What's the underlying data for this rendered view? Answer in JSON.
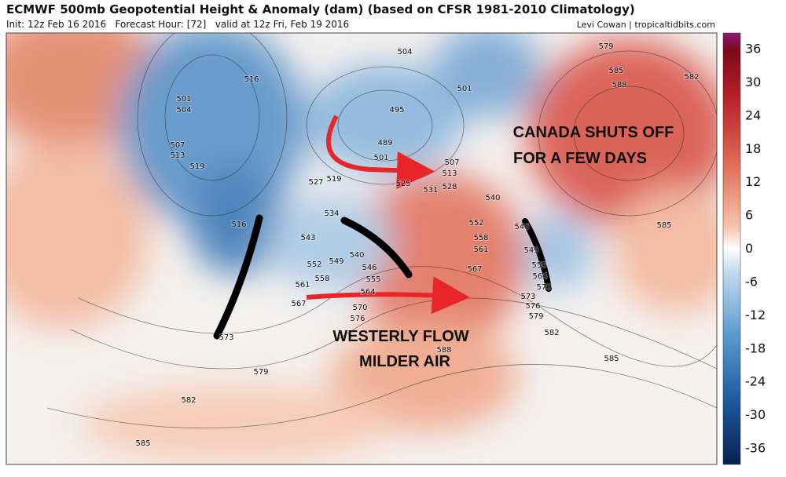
{
  "header": {
    "title": "ECMWF 500mb Geopotential Height & Anomaly (dam) (based on CFSR 1981-2010 Climatology)",
    "subtitle": "Init: 12z Feb 16 2016   Forecast Hour: [72]   valid at 12z Fri, Feb 19 2016",
    "credit": "Levi Cowan | tropicaltidbits.com"
  },
  "annotations": [
    "CANADA SHUTS OFF",
    "FOR A FEW DAYS",
    "WESTERLY FLOW",
    "MILDER AIR"
  ],
  "colorbar": {
    "ticks": [
      36,
      30,
      24,
      18,
      12,
      6,
      0,
      -6,
      -12,
      -18,
      -24,
      -30,
      -36
    ]
  },
  "contour_labels": [
    516,
    501,
    504,
    507,
    513,
    519,
    516,
    527,
    519,
    534,
    543,
    552,
    549,
    540,
    546,
    558,
    555,
    561,
    564,
    567,
    570,
    576,
    573,
    579,
    582,
    585,
    495,
    504,
    501,
    489,
    501,
    507,
    513,
    525,
    528,
    531,
    540,
    552,
    558,
    561,
    567,
    573,
    576,
    579,
    582,
    585,
    585,
    579,
    585,
    588,
    582,
    588,
    546,
    549,
    555,
    564,
    570
  ]
}
